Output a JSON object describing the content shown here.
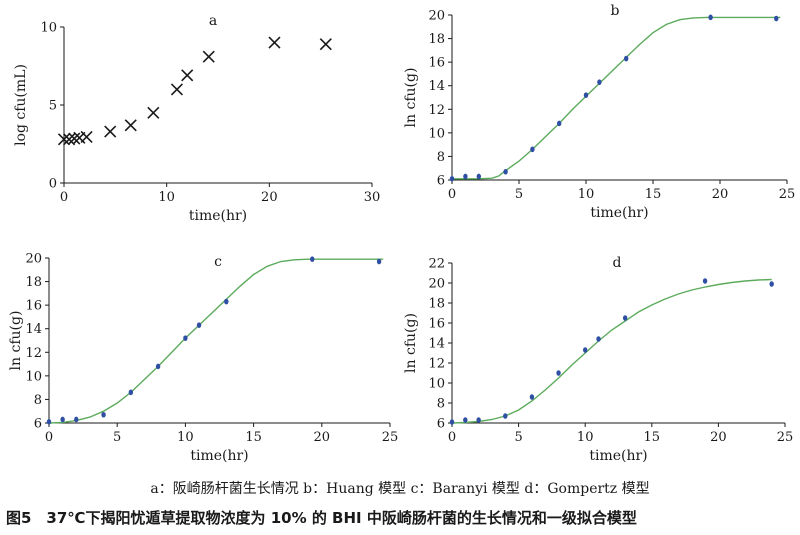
{
  "chart_data": [
    {
      "id": "a",
      "type": "scatter",
      "panel_label": "a",
      "xlabel": "time(hr)",
      "ylabel": "log cfu(mL)",
      "xlim": [
        0,
        30
      ],
      "ylim": [
        0,
        10
      ],
      "xticks": [
        0,
        10,
        20,
        30
      ],
      "yticks": [
        0,
        5,
        10
      ],
      "marker": "cross",
      "x": [
        0.0,
        0.5,
        1.0,
        1.5,
        2.2,
        4.5,
        6.5,
        8.7,
        11.0,
        12.0,
        14.1,
        20.5,
        25.5
      ],
      "y": [
        2.8,
        2.8,
        2.85,
        2.9,
        2.95,
        3.3,
        3.7,
        4.5,
        6.0,
        6.9,
        8.1,
        9.0,
        8.9
      ]
    },
    {
      "id": "b",
      "type": "scatter",
      "panel_label": "b",
      "xlabel": "time(hr)",
      "ylabel": "ln cfu(g)",
      "xlim": [
        0,
        25
      ],
      "ylim": [
        6,
        20
      ],
      "xticks": [
        0,
        5,
        10,
        15,
        20,
        25
      ],
      "yticks": [
        6,
        8,
        10,
        12,
        14,
        16,
        18,
        20
      ],
      "marker": "dot",
      "x": [
        0,
        1,
        2,
        4,
        6,
        8,
        10,
        11,
        13,
        19.3,
        24.2
      ],
      "y": [
        6.1,
        6.3,
        6.3,
        6.7,
        8.6,
        10.8,
        13.2,
        14.3,
        16.3,
        19.8,
        19.7
      ],
      "fit_x": [
        0,
        2,
        3,
        3.5,
        4,
        5,
        6,
        7,
        8,
        9,
        10,
        11,
        12,
        13,
        14,
        15,
        16,
        17,
        18,
        19,
        20,
        22,
        24.5
      ],
      "fit_y": [
        6.1,
        6.1,
        6.15,
        6.35,
        6.8,
        7.6,
        8.6,
        9.7,
        10.8,
        12.0,
        13.1,
        14.2,
        15.3,
        16.4,
        17.5,
        18.5,
        19.2,
        19.6,
        19.75,
        19.8,
        19.8,
        19.8,
        19.8
      ]
    },
    {
      "id": "c",
      "type": "scatter",
      "panel_label": "c",
      "xlabel": "time(hr)",
      "ylabel": "ln cfu(g)",
      "xlim": [
        0,
        25
      ],
      "ylim": [
        6,
        20
      ],
      "xticks": [
        0,
        5,
        10,
        15,
        20,
        25
      ],
      "yticks": [
        6,
        8,
        10,
        12,
        14,
        16,
        18,
        20
      ],
      "marker": "dot",
      "x": [
        0,
        1,
        2,
        4,
        6,
        8,
        10,
        11,
        13,
        19.3,
        24.2
      ],
      "y": [
        6.1,
        6.3,
        6.3,
        6.7,
        8.6,
        10.8,
        13.2,
        14.3,
        16.3,
        19.9,
        19.7
      ],
      "fit_x": [
        0,
        1,
        2,
        3,
        4,
        5,
        6,
        7,
        8,
        9,
        10,
        11,
        12,
        13,
        14,
        15,
        16,
        17,
        18,
        19,
        20,
        22,
        24.5
      ],
      "fit_y": [
        6.0,
        6.05,
        6.2,
        6.5,
        7.0,
        7.7,
        8.6,
        9.7,
        10.8,
        12.0,
        13.2,
        14.3,
        15.4,
        16.5,
        17.6,
        18.6,
        19.3,
        19.7,
        19.85,
        19.9,
        19.9,
        19.9,
        19.9
      ]
    },
    {
      "id": "d",
      "type": "scatter",
      "panel_label": "d",
      "xlabel": "time(hr)",
      "ylabel": "ln cfu(g)",
      "xlim": [
        0,
        25
      ],
      "ylim": [
        6,
        22
      ],
      "xticks": [
        0,
        5,
        10,
        15,
        20,
        25
      ],
      "yticks": [
        6,
        8,
        10,
        12,
        14,
        16,
        18,
        20,
        22
      ],
      "marker": "dot",
      "x": [
        0,
        1,
        2,
        4,
        6,
        8,
        10,
        11,
        13,
        19,
        24
      ],
      "y": [
        6.1,
        6.3,
        6.3,
        6.7,
        8.6,
        11.0,
        13.3,
        14.4,
        16.5,
        20.2,
        19.9
      ],
      "fit_x": [
        0,
        1,
        2,
        3,
        4,
        5,
        6,
        7,
        8,
        9,
        10,
        11,
        12,
        13,
        14,
        15,
        16,
        17,
        18,
        19,
        20,
        21,
        22,
        23,
        24
      ],
      "fit_y": [
        6.0,
        6.05,
        6.15,
        6.35,
        6.7,
        7.3,
        8.2,
        9.3,
        10.5,
        11.8,
        13.0,
        14.2,
        15.3,
        16.2,
        17.1,
        17.8,
        18.4,
        18.9,
        19.3,
        19.6,
        19.85,
        20.05,
        20.2,
        20.3,
        20.35
      ]
    }
  ],
  "legend_text": "a：阪崎肠杆菌生长情况 b：Huang 模型 c：Baranyi 模型 d：Gompertz 模型",
  "caption": "图5　37℃下揭阳忧遁草提取物浓度为 10% 的 BHI 中阪崎肠杆菌的生长情况和一级拟合模型",
  "colors": {
    "fit_line": "#5cab5c",
    "dot": "#2e4fa3",
    "axis": "#1a1a1a",
    "cross": "#1a1a1a"
  }
}
